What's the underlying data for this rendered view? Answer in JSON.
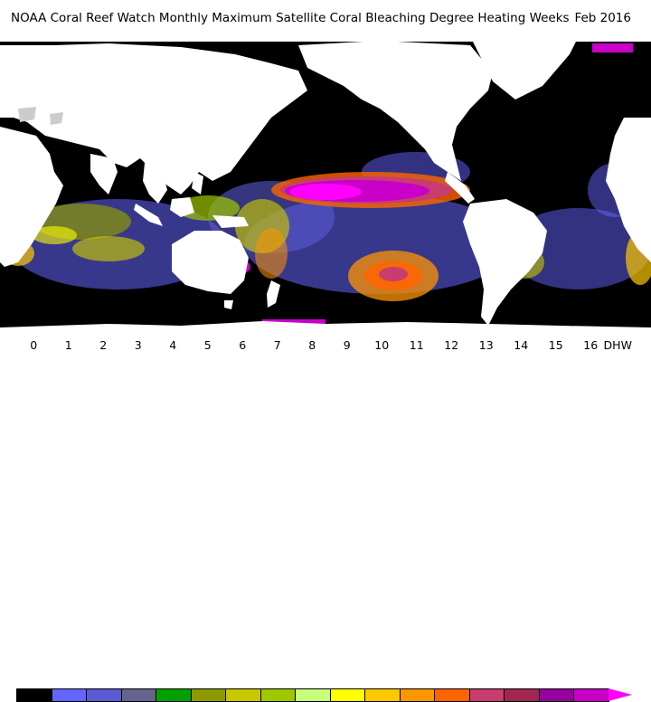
{
  "title": {
    "text": "NOAA Coral Reef Watch Monthly Maximum Satellite Coral Bleaching Degree Heating Weeks",
    "date": "Feb 2016"
  },
  "legend": {
    "ticks": [
      "0",
      "1",
      "2",
      "3",
      "4",
      "5",
      "6",
      "7",
      "8",
      "9",
      "10",
      "11",
      "12",
      "13",
      "14",
      "15",
      "16"
    ],
    "unit": "DHW",
    "colors": [
      "#000000",
      "#6464ff",
      "#5a5ad2",
      "#64648c",
      "#00a000",
      "#8c9a00",
      "#c8c800",
      "#a0c800",
      "#c8ff78",
      "#ffff00",
      "#ffc800",
      "#ff9600",
      "#ff6400",
      "#c83c6e",
      "#a02850",
      "#9600a0",
      "#c800c8"
    ],
    "arrow_color": "#ff00ff"
  },
  "map": {
    "ocean_color": "#000000",
    "land_color": "#ffffff",
    "ice_color": "#cccccc",
    "hotspots": [
      {
        "name": "central-pacific",
        "level": 16
      },
      {
        "name": "south-pacific",
        "level": 12
      },
      {
        "name": "indian-ocean",
        "level": 7
      },
      {
        "name": "coral-triangle",
        "level": 8
      },
      {
        "name": "southern-atlantic",
        "level": 6
      },
      {
        "name": "great-barrier-reef",
        "level": 16
      }
    ]
  }
}
